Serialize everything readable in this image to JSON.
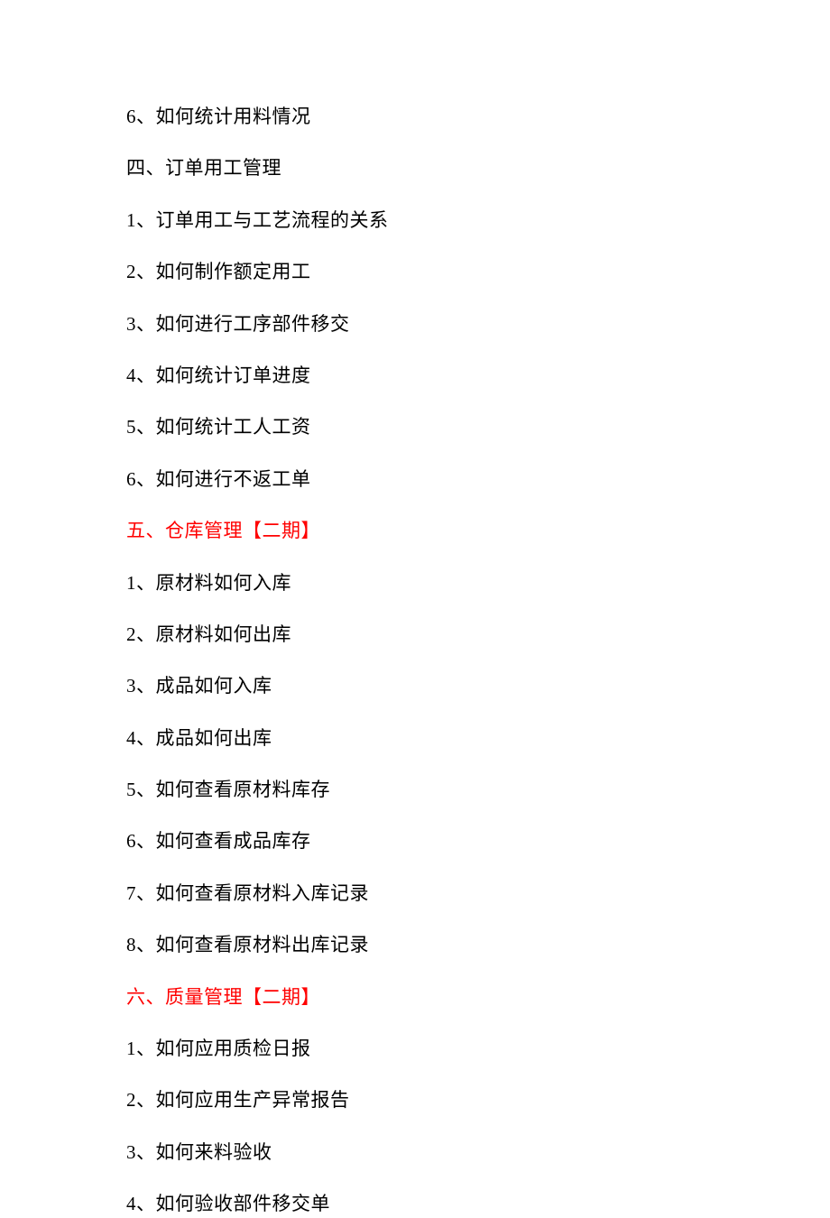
{
  "page": {
    "background_color": "#ffffff",
    "text_color": "#000000",
    "highlight_color": "#ff0000",
    "font_family": "SimSun",
    "font_size": 21,
    "line_spacing": 28
  },
  "lines": [
    {
      "text": "6、如何统计用料情况",
      "highlight": false
    },
    {
      "text": "四、订单用工管理",
      "highlight": false
    },
    {
      "text": "1、订单用工与工艺流程的关系",
      "highlight": false
    },
    {
      "text": "2、如何制作额定用工",
      "highlight": false
    },
    {
      "text": "3、如何进行工序部件移交",
      "highlight": false
    },
    {
      "text": "4、如何统计订单进度",
      "highlight": false
    },
    {
      "text": "5、如何统计工人工资",
      "highlight": false
    },
    {
      "text": "6、如何进行不返工单",
      "highlight": false
    },
    {
      "text": "五、仓库管理【二期】",
      "highlight": true
    },
    {
      "text": "1、原材料如何入库",
      "highlight": false
    },
    {
      "text": "2、原材料如何出库",
      "highlight": false
    },
    {
      "text": "3、成品如何入库",
      "highlight": false
    },
    {
      "text": "4、成品如何出库",
      "highlight": false
    },
    {
      "text": "5、如何查看原材料库存",
      "highlight": false
    },
    {
      "text": "6、如何查看成品库存",
      "highlight": false
    },
    {
      "text": "7、如何查看原材料入库记录",
      "highlight": false
    },
    {
      "text": "8、如何查看原材料出库记录",
      "highlight": false
    },
    {
      "text": "六、质量管理【二期】",
      "highlight": true
    },
    {
      "text": "1、如何应用质检日报",
      "highlight": false
    },
    {
      "text": "2、如何应用生产异常报告",
      "highlight": false
    },
    {
      "text": "3、如何来料验收",
      "highlight": false
    },
    {
      "text": "4、如何验收部件移交单",
      "highlight": false
    }
  ]
}
